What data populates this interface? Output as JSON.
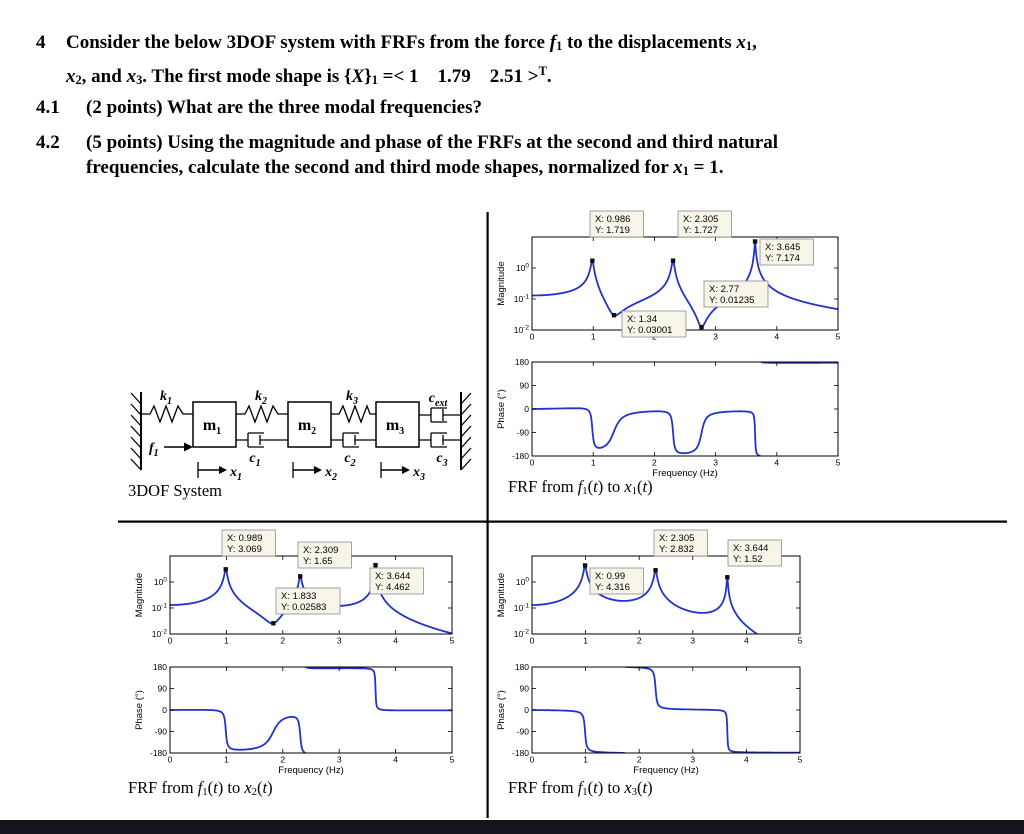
{
  "page": {
    "background": "#ffffff",
    "bottom_bar_color": "#14141d",
    "divider_color": "#000000",
    "line_color": "#2233cc",
    "datatip_bg": "#f7f4e8",
    "datatip_border": "#8a8a8a"
  },
  "problem": {
    "number": "4",
    "header_line1": [
      {
        "t": "Consider the below 3DOF system with FRFs from the force "
      },
      {
        "t": "f",
        "s": "i"
      },
      {
        "t": "1",
        "s": "sub"
      },
      {
        "t": " to the displacements "
      },
      {
        "t": "x",
        "s": "i"
      },
      {
        "t": "1",
        "s": "sub"
      },
      {
        "t": ","
      }
    ],
    "header_line2": [
      {
        "t": "x",
        "s": "i"
      },
      {
        "t": "2",
        "s": "sub"
      },
      {
        "t": ", and "
      },
      {
        "t": "x",
        "s": "i"
      },
      {
        "t": "3",
        "s": "sub"
      },
      {
        "t": ". The first mode shape is {"
      },
      {
        "t": "X",
        "s": "i"
      },
      {
        "t": "}"
      },
      {
        "t": "1",
        "s": "sub"
      },
      {
        "t": " =< 1  1.79  2.51 >"
      },
      {
        "t": "T",
        "s": "sup"
      },
      {
        "t": "."
      }
    ],
    "q41": {
      "number": "4.1",
      "line1": [
        {
          "t": "(2 points) What are the three modal frequencies?"
        }
      ]
    },
    "q42": {
      "number": "4.2",
      "line1": [
        {
          "t": "(5 points) Using the magnitude and phase of the FRFs at the second and third natural"
        }
      ],
      "line2": [
        {
          "t": "frequencies, calculate the second and third mode shapes, normalized for "
        },
        {
          "t": "x",
          "s": "i"
        },
        {
          "t": "1",
          "s": "sub"
        },
        {
          "t": " = 1."
        }
      ]
    }
  },
  "diagram": {
    "caption": "3DOF System",
    "labels": {
      "k1": {
        "base": "k",
        "sub": "1"
      },
      "k2": {
        "base": "k",
        "sub": "2"
      },
      "k3": {
        "base": "k",
        "sub": "3"
      },
      "m1": {
        "base": "m",
        "sub": "1"
      },
      "m2": {
        "base": "m",
        "sub": "2"
      },
      "m3": {
        "base": "m",
        "sub": "3"
      },
      "c1": {
        "base": "c",
        "sub": "1"
      },
      "c2": {
        "base": "c",
        "sub": "2"
      },
      "c3": {
        "base": "c",
        "sub": "3"
      },
      "cext": {
        "base": "c",
        "sub": "ext"
      },
      "f1": {
        "base": "f",
        "sub": "1"
      },
      "x1": {
        "base": "x",
        "sub": "1"
      },
      "x2": {
        "base": "x",
        "sub": "2"
      },
      "x3": {
        "base": "x",
        "sub": "3"
      }
    }
  },
  "chart_data": [
    {
      "id": "x1",
      "type": "line",
      "caption_segments": [
        {
          "t": "FRF from "
        },
        {
          "t": "f",
          "s": "i"
        },
        {
          "t": "1",
          "s": "sub"
        },
        {
          "t": "("
        },
        {
          "t": "t",
          "s": "i"
        },
        {
          "t": ") to "
        },
        {
          "t": "x",
          "s": "i"
        },
        {
          "t": "1",
          "s": "sub"
        },
        {
          "t": "("
        },
        {
          "t": "t",
          "s": "i"
        },
        {
          "t": ")"
        }
      ],
      "magnitude": {
        "ylabel": "Magnitude",
        "yscale": "log",
        "ylim_log": [
          -2,
          1
        ],
        "ytick_exponents": [
          0,
          -1,
          -2
        ],
        "xlim": [
          0,
          5
        ],
        "xticks": [
          0,
          1,
          2,
          3,
          4,
          5
        ],
        "dc_gain": 0.13,
        "resonances": [
          {
            "f": 0.986,
            "peak": 1.719
          },
          {
            "f": 2.305,
            "peak": 1.727
          },
          {
            "f": 3.645,
            "peak": 7.174
          }
        ],
        "antiresonances": [
          {
            "f": 1.34,
            "valley": 0.03001
          },
          {
            "f": 2.77,
            "valley": 0.01235
          }
        ],
        "datatips": [
          {
            "x": 0.986,
            "y": 1.719,
            "label_x": "X: 0.986",
            "label_y": "Y: 1.719",
            "bx": 58,
            "by": -26
          },
          {
            "x": 2.305,
            "y": 1.727,
            "label_x": "X: 2.305",
            "label_y": "Y: 1.727",
            "bx": 146,
            "by": -26
          },
          {
            "x": 3.645,
            "y": 7.174,
            "label_x": "X: 3.645",
            "label_y": "Y: 7.174",
            "bx": 228,
            "by": 2
          },
          {
            "x": 2.77,
            "y": 0.01235,
            "label_x": "X: 2.77",
            "label_y": "Y: 0.01235",
            "bx": 172,
            "by": 44
          },
          {
            "x": 1.34,
            "y": 0.03001,
            "label_x": "X: 1.34",
            "label_y": "Y: 0.03001",
            "bx": 90,
            "by": 74
          }
        ]
      },
      "phase": {
        "ylabel": "Phase (°)",
        "xlabel": "Frequency (Hz)",
        "ylim": [
          -180,
          180
        ],
        "yticks": [
          180,
          90,
          0,
          -90,
          -180
        ],
        "xticks": [
          0,
          1,
          2,
          3,
          4,
          5
        ]
      }
    },
    {
      "id": "x2",
      "type": "line",
      "caption_segments": [
        {
          "t": "FRF from "
        },
        {
          "t": "f",
          "s": "i"
        },
        {
          "t": "1",
          "s": "sub"
        },
        {
          "t": "("
        },
        {
          "t": "t",
          "s": "i"
        },
        {
          "t": ") to "
        },
        {
          "t": "x",
          "s": "i"
        },
        {
          "t": "2",
          "s": "sub"
        },
        {
          "t": "("
        },
        {
          "t": "t",
          "s": "i"
        },
        {
          "t": ")"
        }
      ],
      "magnitude": {
        "ylabel": "Magnitude",
        "yscale": "log",
        "ylim_log": [
          -2,
          1
        ],
        "ytick_exponents": [
          0,
          -1,
          -2
        ],
        "xlim": [
          0,
          5
        ],
        "xticks": [
          0,
          1,
          2,
          3,
          4,
          5
        ],
        "dc_gain": 0.13,
        "resonances": [
          {
            "f": 0.989,
            "peak": 3.069
          },
          {
            "f": 2.309,
            "peak": 1.65
          },
          {
            "f": 3.644,
            "peak": 4.462
          }
        ],
        "antiresonances": [
          {
            "f": 1.833,
            "valley": 0.02583
          }
        ],
        "datatips": [
          {
            "x": 0.989,
            "y": 3.069,
            "label_x": "X: 0.989",
            "label_y": "Y: 3.069",
            "bx": 52,
            "by": -26
          },
          {
            "x": 2.309,
            "y": 1.65,
            "label_x": "X: 2.309",
            "label_y": "Y: 1.65",
            "bx": 128,
            "by": -14
          },
          {
            "x": 3.644,
            "y": 4.462,
            "label_x": "X: 3.644",
            "label_y": "Y: 4.462",
            "bx": 200,
            "by": 12
          },
          {
            "x": 1.833,
            "y": 0.02583,
            "label_x": "X: 1.833",
            "label_y": "Y: 0.02583",
            "bx": 106,
            "by": 32
          }
        ]
      },
      "phase": {
        "ylabel": "Phase (°)",
        "xlabel": "Frequency (Hz)",
        "ylim": [
          -180,
          180
        ],
        "yticks": [
          180,
          90,
          0,
          -90,
          -180
        ],
        "xticks": [
          0,
          1,
          2,
          3,
          4,
          5
        ]
      }
    },
    {
      "id": "x3",
      "type": "line",
      "caption_segments": [
        {
          "t": "FRF from "
        },
        {
          "t": "f",
          "s": "i"
        },
        {
          "t": "1",
          "s": "sub"
        },
        {
          "t": "("
        },
        {
          "t": "t",
          "s": "i"
        },
        {
          "t": ") to "
        },
        {
          "t": "x",
          "s": "i"
        },
        {
          "t": "3",
          "s": "sub"
        },
        {
          "t": "("
        },
        {
          "t": "t",
          "s": "i"
        },
        {
          "t": ")"
        }
      ],
      "magnitude": {
        "ylabel": "Magnitude",
        "yscale": "log",
        "ylim_log": [
          -2,
          1
        ],
        "ytick_exponents": [
          0,
          -1,
          -2
        ],
        "xlim": [
          0,
          5
        ],
        "xticks": [
          0,
          1,
          2,
          3,
          4,
          5
        ],
        "dc_gain": 0.13,
        "resonances": [
          {
            "f": 0.99,
            "peak": 4.316
          },
          {
            "f": 2.305,
            "peak": 2.832
          },
          {
            "f": 3.644,
            "peak": 1.52
          }
        ],
        "antiresonances": [],
        "datatips": [
          {
            "x": 0.99,
            "y": 4.316,
            "label_x": "X: 0.99",
            "label_y": "Y: 4.316",
            "bx": 58,
            "by": 12
          },
          {
            "x": 2.305,
            "y": 2.832,
            "label_x": "X: 2.305",
            "label_y": "Y: 2.832",
            "bx": 122,
            "by": -26
          },
          {
            "x": 3.644,
            "y": 1.52,
            "label_x": "X: 3.644",
            "label_y": "Y: 1.52",
            "bx": 196,
            "by": -16
          }
        ]
      },
      "phase": {
        "ylabel": "Phase (°)",
        "xlabel": "Frequency (Hz)",
        "ylim": [
          -180,
          180
        ],
        "yticks": [
          180,
          90,
          0,
          -90,
          -180
        ],
        "xticks": [
          0,
          1,
          2,
          3,
          4,
          5
        ]
      }
    }
  ]
}
